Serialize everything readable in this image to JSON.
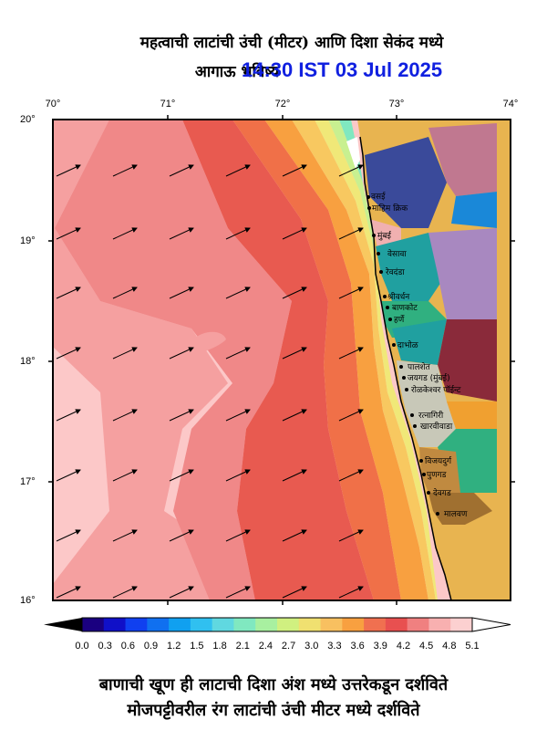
{
  "title_line1": "महत्वाची लाटांची उंची (मीटर) आणि दिशा सेकंद मध्ये",
  "title_line2_prefix": "आगाऊ भविष्य",
  "title_line2_time": "14:30 IST 03 Jul 2025",
  "lon_labels": [
    "70°",
    "71°",
    "72°",
    "73°",
    "74°"
  ],
  "lat_labels": [
    "20°",
    "19°",
    "18°",
    "17°",
    "16°"
  ],
  "places": [
    "वसई",
    "माहिम क्रिक",
    "मुंबई",
    "वेसावा",
    "रेवदंडा",
    "श्रीवर्धन",
    "बाणकोट",
    "हर्णे",
    "दाभोळ",
    "पालशेत",
    "जयगड (मुंबई)",
    "रोळकेश्वर पॉईन्ट",
    "रत्नागिरी",
    "खारवीवाडा",
    "विजयदुर्ग",
    "पुणगड",
    "देवगड",
    "मालवण"
  ],
  "colorbar": {
    "labels": [
      "0.0",
      "0.3",
      "0.6",
      "0.9",
      "1.2",
      "1.5",
      "1.8",
      "2.1",
      "2.4",
      "2.7",
      "3.0",
      "3.3",
      "3.6",
      "3.9",
      "4.2",
      "4.5",
      "4.8",
      "5.1"
    ],
    "colors": [
      "#1a0080",
      "#1010c8",
      "#1040f0",
      "#1070f0",
      "#10a0f0",
      "#30c0f0",
      "#60d8e0",
      "#80e8c0",
      "#a8f0a0",
      "#d0f080",
      "#f0e070",
      "#f8c060",
      "#f8a040",
      "#f07050",
      "#e85050",
      "#f08080",
      "#f8b0b0",
      "#fcd0d0",
      "#ffffff"
    ]
  },
  "footer_line1": "बाणाची खूण ही लाटाची दिशा अंश मध्ये उत्तरेकडून दर्शविते",
  "footer_line2": "मोजपट्टीवरील रंग लाटांची उंची मीटर मध्ये दर्शविते"
}
